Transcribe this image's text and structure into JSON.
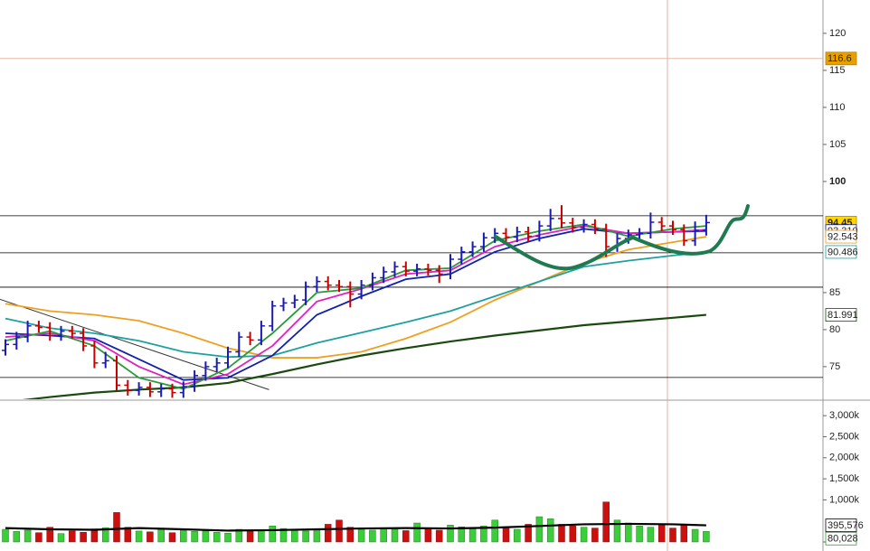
{
  "chart_data": [
    {
      "type": "ohlc",
      "ylim": [
        70.6,
        124.5
      ],
      "yticks": [
        75,
        80,
        85,
        100,
        105,
        110,
        115,
        120
      ],
      "emphasized_ytick": 100,
      "up_color": "#1a1ab4",
      "down_color": "#c80000",
      "open": [
        77.2,
        78,
        79,
        80.5,
        80.3,
        79.2,
        79.8,
        79.5,
        77.8,
        75.5,
        75.8,
        72.5,
        71.8,
        72.2,
        71.6,
        72.0,
        71.5,
        72.3,
        73.8,
        75.0,
        75.5,
        77.0,
        79.0,
        78.6,
        80.5,
        83.2,
        83.6,
        84.0,
        85.8,
        86.5,
        86.0,
        85.8,
        84.8,
        86.0,
        87.0,
        87.8,
        88.5,
        87.9,
        88.2,
        88.0,
        87.5,
        89.5,
        90.5,
        91.2,
        92.4,
        93.0,
        92.5,
        93.2,
        92.6,
        94.0,
        95.0,
        94.4,
        93.8,
        94.2,
        93.6,
        91.2,
        92.3,
        92.8,
        93.0,
        94.5,
        94.0,
        93.5,
        92.0,
        93.4
      ],
      "high": [
        78.7,
        79.7,
        81.2,
        81.2,
        81.0,
        80.5,
        80.5,
        80.2,
        78.5,
        77.0,
        76.5,
        73.2,
        72.9,
        72.9,
        72.7,
        72.7,
        73.0,
        74.5,
        75.7,
        76.2,
        77.7,
        79.7,
        79.7,
        81.2,
        83.9,
        84.3,
        84.7,
        86.5,
        87.2,
        87.2,
        86.7,
        86.5,
        86.7,
        87.7,
        88.5,
        89.2,
        89.2,
        88.9,
        88.9,
        88.7,
        90.2,
        91.2,
        91.9,
        93.1,
        93.7,
        93.7,
        93.9,
        93.9,
        94.7,
        96.3,
        96.8,
        95.1,
        94.9,
        94.9,
        94.3,
        93.0,
        93.5,
        93.7,
        95.8,
        95.2,
        94.7,
        94.2,
        94.6,
        95.5
      ],
      "low": [
        76.5,
        77.3,
        78.3,
        79.6,
        78.5,
        78.5,
        78.8,
        77.1,
        74.8,
        74.8,
        71.8,
        71.1,
        71.1,
        70.9,
        70.9,
        70.8,
        70.8,
        71.6,
        73.1,
        74.3,
        74.8,
        76.3,
        77.9,
        77.9,
        79.8,
        82.5,
        82.9,
        83.3,
        85.1,
        85.3,
        85.1,
        83.0,
        84.1,
        85.3,
        86.3,
        87.1,
        87.2,
        87.2,
        87.3,
        86.3,
        86.8,
        88.8,
        89.8,
        90.5,
        91.7,
        91.8,
        91.8,
        91.9,
        91.9,
        93.3,
        93.7,
        93.1,
        93.1,
        92.9,
        89.8,
        90.5,
        91.6,
        92.1,
        92.3,
        93.3,
        92.8,
        91.3,
        91.3,
        92.7
      ],
      "close": [
        78,
        79,
        80.5,
        80.3,
        79.2,
        79.8,
        79.5,
        77.8,
        75.5,
        75.8,
        72.5,
        71.8,
        72.2,
        71.6,
        72.0,
        71.5,
        72.3,
        73.8,
        75.0,
        75.5,
        77.0,
        79.0,
        78.6,
        80.5,
        83.2,
        83.6,
        84.0,
        85.8,
        86.5,
        86.0,
        85.8,
        84.8,
        86.0,
        87.0,
        87.8,
        88.5,
        87.9,
        88.2,
        88.0,
        87.5,
        89.5,
        90.5,
        91.2,
        92.4,
        93.0,
        92.5,
        93.2,
        92.6,
        94.0,
        95.0,
        94.4,
        93.8,
        94.2,
        93.6,
        91.2,
        92.3,
        92.8,
        93.0,
        94.5,
        94.0,
        93.5,
        92.0,
        93.4,
        94.45
      ],
      "series": [
        {
          "color": "#1a4a10",
          "x": [
            0,
            4,
            8,
            12,
            16,
            20,
            24,
            28,
            32,
            36,
            40,
            44,
            48,
            52,
            56,
            60,
            63
          ],
          "values": [
            70.2,
            70.9,
            71.5,
            71.9,
            72.2,
            72.8,
            74.0,
            75.3,
            76.5,
            77.5,
            78.4,
            79.2,
            79.9,
            80.6,
            81.1,
            81.6,
            81.991
          ]
        },
        {
          "color": "#f0a020",
          "x": [
            0,
            4,
            8,
            12,
            16,
            20,
            24,
            28,
            32,
            36,
            40,
            44,
            48,
            52,
            56,
            60,
            63
          ],
          "values": [
            83.5,
            82.5,
            82.0,
            81.2,
            79.5,
            77.5,
            76.2,
            76.2,
            77.0,
            78.8,
            81.0,
            84.0,
            86.5,
            89.0,
            90.8,
            91.8,
            92.543
          ]
        },
        {
          "color": "#1ea0a0",
          "x": [
            0,
            4,
            8,
            12,
            16,
            20,
            24,
            28,
            32,
            36,
            40,
            44,
            48,
            52,
            56,
            60,
            63
          ],
          "values": [
            81.5,
            80.2,
            79.5,
            78.5,
            77.0,
            76.3,
            76.5,
            78.2,
            79.6,
            81.0,
            82.5,
            84.5,
            86.5,
            88.5,
            89.3,
            90.0,
            90.486
          ]
        },
        {
          "color": "#1020b0",
          "x": [
            0,
            4,
            8,
            12,
            16,
            20,
            24,
            28,
            32,
            36,
            40,
            44,
            48,
            52,
            56,
            60,
            63
          ],
          "values": [
            79.5,
            79.2,
            78.8,
            76.0,
            73.2,
            73.5,
            76.5,
            82.0,
            84.5,
            86.8,
            87.5,
            90.5,
            92.3,
            93.6,
            93.0,
            93.2,
            93.31
          ]
        },
        {
          "color": "#e020c0",
          "x": [
            0,
            4,
            8,
            12,
            16,
            20,
            24,
            28,
            32,
            36,
            40,
            44,
            48,
            52,
            56,
            60,
            63
          ],
          "values": [
            79.0,
            79.5,
            78.5,
            75.0,
            72.6,
            74.0,
            77.8,
            83.8,
            85.5,
            87.5,
            88.0,
            91.2,
            92.8,
            94.0,
            93.0,
            93.2,
            93.5
          ]
        },
        {
          "color": "#2a9a3a",
          "x": [
            0,
            4,
            8,
            12,
            16,
            20,
            24,
            28,
            32,
            36,
            40,
            44,
            48,
            52,
            56,
            60,
            63
          ],
          "values": [
            78.5,
            79.8,
            77.8,
            73.5,
            72.0,
            74.8,
            79.5,
            85.0,
            85.6,
            88.0,
            88.3,
            92.0,
            93.3,
            94.2,
            92.6,
            93.6,
            94.0
          ]
        }
      ],
      "hlines": [
        95.37,
        90.37,
        85.73,
        73.54
      ],
      "trendline": {
        "x": [
          -0.5,
          23.7
        ],
        "values": [
          84.1,
          71.9
        ]
      },
      "markers": [
        {
          "value": 116.6,
          "label": "116.6",
          "color": "#e8a000"
        },
        {
          "value": 94.45,
          "label": "94.45",
          "color": "#ffd800"
        },
        {
          "value": 93.31,
          "label": "93.310",
          "color": "#1020b0"
        },
        {
          "value": 92.543,
          "label": "92.543",
          "color": "#f0a020"
        },
        {
          "value": 90.486,
          "label": "90.486",
          "color": "#1ea0a0"
        },
        {
          "value": 81.991,
          "label": "81.991",
          "color": "#1a4a10"
        }
      ]
    },
    {
      "type": "bar",
      "ylim": [
        -214.6,
        3326
      ],
      "yticks": [
        0,
        {
          "value": 1000,
          "label": "1,000k"
        },
        {
          "value": 1500,
          "label": "1,500k"
        },
        {
          "value": 2000,
          "label": "2,000k"
        },
        {
          "value": 2500,
          "label": "2,500k"
        },
        {
          "value": 3000,
          "label": "3,000k"
        }
      ],
      "up_color": "#3ccc3c",
      "down_color": "#cc1010",
      "values": [
        300,
        250,
        280,
        220,
        350,
        200,
        260,
        230,
        310,
        340,
        700,
        350,
        260,
        240,
        300,
        220,
        280,
        250,
        260,
        230,
        210,
        300,
        250,
        280,
        380,
        320,
        290,
        260,
        300,
        420,
        520,
        350,
        300,
        280,
        330,
        300,
        270,
        450,
        310,
        280,
        400,
        360,
        330,
        380,
        520,
        350,
        300,
        420,
        600,
        550,
        420,
        380,
        350,
        330,
        950,
        520,
        450,
        380,
        350,
        400,
        330,
        420,
        300,
        250
      ],
      "series": [
        {
          "color": "#000000",
          "x": [
            0,
            4,
            8,
            12,
            16,
            20,
            24,
            28,
            32,
            36,
            40,
            44,
            48,
            52,
            56,
            60,
            63
          ],
          "values": [
            330,
            300,
            290,
            330,
            300,
            270,
            280,
            300,
            320,
            330,
            320,
            340,
            380,
            420,
            430,
            420,
            395.576
          ]
        }
      ],
      "markers": [
        {
          "value": 395.576,
          "label": "395,576",
          "color": "#000000"
        },
        {
          "value": 80.028,
          "label": "80,028",
          "color": "#30a030"
        }
      ]
    }
  ]
}
